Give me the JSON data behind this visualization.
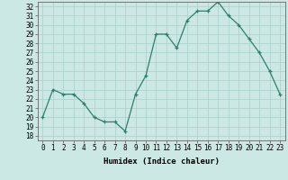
{
  "x": [
    0,
    1,
    2,
    3,
    4,
    5,
    6,
    7,
    8,
    9,
    10,
    11,
    12,
    13,
    14,
    15,
    16,
    17,
    18,
    19,
    20,
    21,
    22,
    23
  ],
  "y": [
    20,
    23,
    22.5,
    22.5,
    21.5,
    20,
    19.5,
    19.5,
    18.5,
    22.5,
    24.5,
    29,
    29,
    27.5,
    30.5,
    31.5,
    31.5,
    32.5,
    31,
    30,
    28.5,
    27,
    25,
    22.5
  ],
  "xlabel": "Humidex (Indice chaleur)",
  "xlim": [
    -0.5,
    23.5
  ],
  "ylim": [
    17.5,
    32.5
  ],
  "yticks": [
    18,
    19,
    20,
    21,
    22,
    23,
    24,
    25,
    26,
    27,
    28,
    29,
    30,
    31,
    32
  ],
  "xticks": [
    0,
    1,
    2,
    3,
    4,
    5,
    6,
    7,
    8,
    9,
    10,
    11,
    12,
    13,
    14,
    15,
    16,
    17,
    18,
    19,
    20,
    21,
    22,
    23
  ],
  "line_color": "#2e7d6e",
  "marker_color": "#2e7d6e",
  "bg_color": "#cce8e4",
  "grid_color": "#aacfcb",
  "axis_fontsize": 6.5,
  "tick_fontsize": 5.5
}
